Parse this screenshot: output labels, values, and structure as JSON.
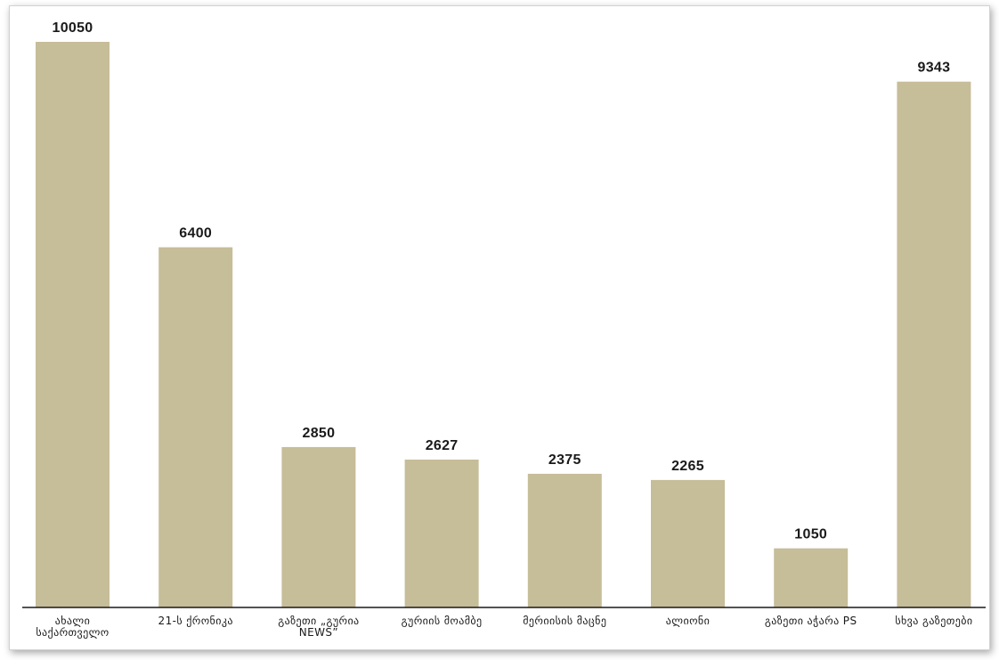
{
  "chart_data": {
    "type": "bar",
    "categories": [
      [
        "ახალი",
        "საქართველო"
      ],
      [
        "21-ს ქრონიკა"
      ],
      [
        "გაზეთი „გურია",
        "NEWS”"
      ],
      [
        "გურიის მოამბე"
      ],
      [
        "მერიისის მაცნე"
      ],
      [
        "ალიონი"
      ],
      [
        "გაზეთი აჭარა PS"
      ],
      [
        "სხვა გაზეთები"
      ]
    ],
    "values": [
      10050,
      6400,
      2850,
      2627,
      2375,
      2265,
      1050,
      9343
    ],
    "ylim": [
      0,
      10050
    ],
    "grid": false,
    "legend": "none",
    "bar_color": "#c6bd99",
    "axis_color": "#1a1a1a"
  }
}
